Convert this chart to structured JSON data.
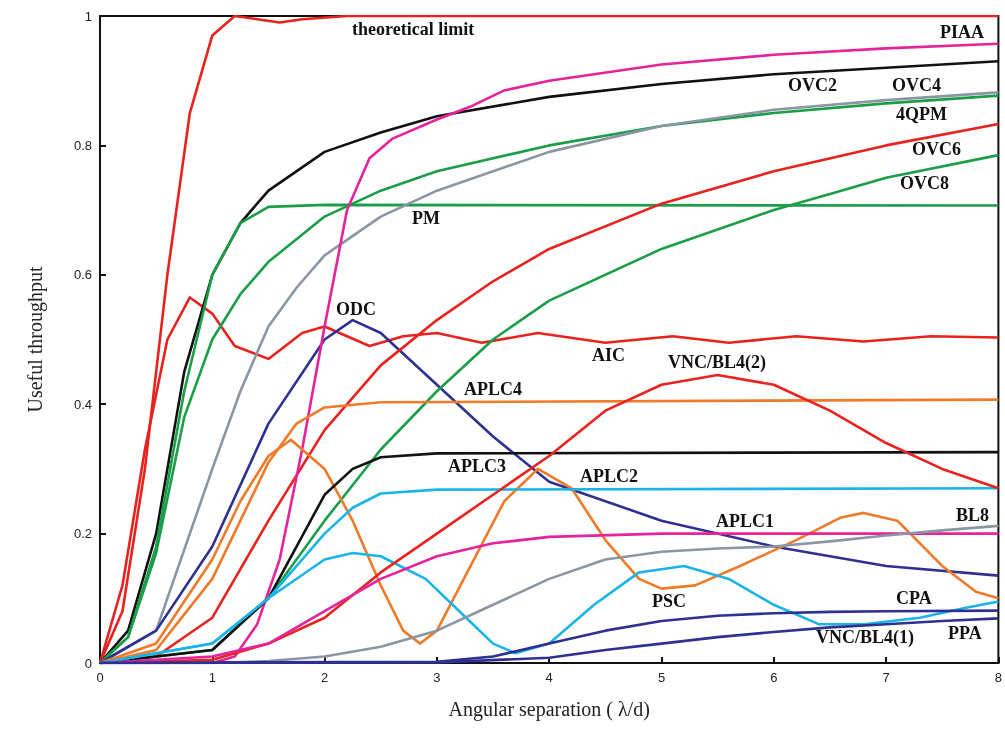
{
  "chart_data": {
    "type": "line",
    "xlabel": "Angular separation ( λ/d)",
    "ylabel": "Useful throughput",
    "xlim": [
      0,
      8
    ],
    "ylim": [
      0,
      1
    ],
    "xticks": [
      0,
      1,
      2,
      3,
      4,
      5,
      6,
      7,
      8
    ],
    "yticks": [
      0,
      0.2,
      0.4,
      0.6,
      0.8,
      1
    ],
    "marker": "none",
    "line_style": "solid",
    "series": [
      {
        "name": "theoretical limit",
        "color": "#e8221e",
        "x": [
          0,
          0.2,
          0.4,
          0.6,
          0.8,
          1.0,
          1.2,
          1.4,
          1.6,
          1.8,
          2.2,
          3,
          4,
          5,
          6,
          7,
          8
        ],
        "values": [
          0,
          0.08,
          0.3,
          0.6,
          0.85,
          0.97,
          1.0,
          0.995,
          0.99,
          0.995,
          1.0,
          1.0,
          1.0,
          1.0,
          1.0,
          1.0,
          1.0
        ]
      },
      {
        "name": "AIC",
        "color": "#e8221e",
        "x": [
          0,
          0.2,
          0.4,
          0.6,
          0.8,
          1.0,
          1.2,
          1.5,
          1.8,
          2.0,
          2.4,
          2.7,
          3.0,
          3.4,
          3.9,
          4.5,
          5.1,
          5.6,
          6.2,
          6.8,
          7.4,
          8
        ],
        "values": [
          0,
          0.12,
          0.33,
          0.5,
          0.565,
          0.54,
          0.49,
          0.47,
          0.51,
          0.52,
          0.49,
          0.505,
          0.51,
          0.495,
          0.51,
          0.495,
          0.505,
          0.495,
          0.505,
          0.497,
          0.505,
          0.503
        ]
      },
      {
        "name": "OVC2",
        "color": "#111111",
        "x": [
          0,
          0.25,
          0.5,
          0.75,
          1,
          1.25,
          1.5,
          2,
          2.5,
          3,
          4,
          5,
          6,
          7,
          8
        ],
        "values": [
          0,
          0.05,
          0.2,
          0.45,
          0.6,
          0.68,
          0.73,
          0.79,
          0.82,
          0.845,
          0.875,
          0.895,
          0.91,
          0.92,
          0.93
        ]
      },
      {
        "name": "PM",
        "color": "#1a9e48",
        "x": [
          0,
          0.25,
          0.5,
          0.75,
          1,
          1.25,
          1.5,
          2,
          8
        ],
        "values": [
          0,
          0.04,
          0.18,
          0.42,
          0.6,
          0.68,
          0.705,
          0.708,
          0.707
        ]
      },
      {
        "name": "4QPM",
        "color": "#1a9e48",
        "x": [
          0,
          0.25,
          0.5,
          0.75,
          1,
          1.25,
          1.5,
          2,
          2.5,
          3,
          4,
          5,
          6,
          7,
          8
        ],
        "values": [
          0,
          0.04,
          0.17,
          0.38,
          0.5,
          0.57,
          0.62,
          0.69,
          0.73,
          0.76,
          0.8,
          0.83,
          0.85,
          0.865,
          0.877
        ]
      },
      {
        "name": "OVC4",
        "color": "#8a96a3",
        "x": [
          0,
          0.5,
          1,
          1.25,
          1.5,
          1.75,
          2,
          2.5,
          3,
          4,
          5,
          6,
          7,
          8
        ],
        "values": [
          0,
          0.05,
          0.3,
          0.42,
          0.52,
          0.58,
          0.63,
          0.69,
          0.73,
          0.79,
          0.83,
          0.855,
          0.87,
          0.882
        ]
      },
      {
        "name": "ODC",
        "color": "#2e3192",
        "x": [
          0,
          0.5,
          1,
          1.5,
          2,
          2.25,
          2.5,
          3,
          3.5,
          4,
          5,
          6,
          7,
          8
        ],
        "values": [
          0,
          0.05,
          0.18,
          0.37,
          0.5,
          0.53,
          0.51,
          0.43,
          0.35,
          0.28,
          0.22,
          0.18,
          0.15,
          0.135
        ]
      },
      {
        "name": "OVC6",
        "color": "#e8221e",
        "x": [
          0,
          0.5,
          1,
          1.5,
          2,
          2.5,
          3,
          3.5,
          4,
          5,
          6,
          7,
          8
        ],
        "values": [
          0,
          0.01,
          0.07,
          0.22,
          0.36,
          0.46,
          0.53,
          0.59,
          0.64,
          0.71,
          0.76,
          0.8,
          0.833
        ]
      },
      {
        "name": "OVC8",
        "color": "#1a9e48",
        "x": [
          0,
          1,
          1.5,
          2,
          2.5,
          3,
          3.5,
          4,
          5,
          6,
          6.5,
          7,
          8
        ],
        "values": [
          0,
          0.02,
          0.1,
          0.22,
          0.33,
          0.42,
          0.5,
          0.56,
          0.64,
          0.7,
          0.725,
          0.75,
          0.785
        ]
      },
      {
        "name": "PIAA",
        "color": "#e6239a",
        "x": [
          0,
          1,
          1.2,
          1.4,
          1.6,
          1.8,
          2.0,
          2.2,
          2.4,
          2.6,
          3,
          3.3,
          3.6,
          4,
          5,
          6,
          7,
          8
        ],
        "values": [
          0,
          0,
          0.01,
          0.06,
          0.16,
          0.33,
          0.52,
          0.7,
          0.78,
          0.81,
          0.84,
          0.86,
          0.885,
          0.9,
          0.925,
          0.94,
          0.95,
          0.957
        ]
      },
      {
        "name": "APLC4",
        "color": "#f07a28",
        "x": [
          0,
          0.5,
          1,
          1.25,
          1.5,
          1.75,
          2,
          2.5,
          8
        ],
        "values": [
          0,
          0.02,
          0.13,
          0.22,
          0.31,
          0.37,
          0.395,
          0.403,
          0.407
        ]
      },
      {
        "name": "PSC",
        "color": "#f07a28",
        "x": [
          0,
          0.5,
          1,
          1.25,
          1.5,
          1.7,
          2,
          2.25,
          2.5,
          2.7,
          2.85,
          3.0,
          3.3,
          3.6,
          3.9,
          4.2,
          4.5,
          4.8,
          5.0,
          5.3,
          5.7,
          6.2,
          6.6,
          6.8,
          7.1,
          7.5,
          7.8,
          8
        ],
        "values": [
          0,
          0.03,
          0.16,
          0.25,
          0.32,
          0.345,
          0.3,
          0.22,
          0.12,
          0.05,
          0.03,
          0.05,
          0.15,
          0.25,
          0.3,
          0.27,
          0.19,
          0.13,
          0.115,
          0.12,
          0.15,
          0.19,
          0.225,
          0.232,
          0.22,
          0.15,
          0.11,
          0.1
        ]
      },
      {
        "name": "APLC3",
        "color": "#111111",
        "x": [
          0,
          1,
          1.5,
          1.75,
          2,
          2.25,
          2.5,
          3,
          8
        ],
        "values": [
          0,
          0.02,
          0.1,
          0.18,
          0.26,
          0.3,
          0.318,
          0.324,
          0.326
        ]
      },
      {
        "name": "APLC2",
        "color": "#1ab4e8",
        "x": [
          0,
          1,
          1.5,
          2,
          2.25,
          2.5,
          3,
          8
        ],
        "values": [
          0,
          0.03,
          0.1,
          0.2,
          0.24,
          0.262,
          0.268,
          0.27
        ]
      },
      {
        "name": "VNC/BL4(1)",
        "color": "#1ab4e8",
        "x": [
          0,
          1,
          1.5,
          2,
          2.25,
          2.5,
          2.9,
          3.2,
          3.5,
          3.7,
          4.0,
          4.4,
          4.8,
          5.2,
          5.6,
          6.0,
          6.4,
          6.8,
          7.3,
          7.7,
          8
        ],
        "values": [
          0,
          0.03,
          0.1,
          0.16,
          0.17,
          0.165,
          0.13,
          0.08,
          0.03,
          0.015,
          0.03,
          0.09,
          0.14,
          0.15,
          0.13,
          0.09,
          0.06,
          0.06,
          0.07,
          0.085,
          0.095
        ]
      },
      {
        "name": "VNC/BL4(2)",
        "color": "#e8221e",
        "x": [
          0,
          1,
          1.5,
          2,
          2.5,
          3,
          3.5,
          4,
          4.5,
          5,
          5.5,
          6,
          6.5,
          7,
          7.5,
          8
        ],
        "values": [
          0,
          0.005,
          0.03,
          0.07,
          0.14,
          0.2,
          0.26,
          0.32,
          0.39,
          0.43,
          0.445,
          0.43,
          0.39,
          0.34,
          0.3,
          0.27
        ]
      },
      {
        "name": "APLC1",
        "color": "#e6239a",
        "x": [
          0,
          1,
          1.5,
          2,
          2.5,
          3,
          3.5,
          4,
          5,
          8
        ],
        "values": [
          0,
          0.01,
          0.03,
          0.08,
          0.13,
          0.165,
          0.185,
          0.195,
          0.2,
          0.2
        ]
      },
      {
        "name": "BL8",
        "color": "#8a96a3",
        "x": [
          0,
          1,
          1.5,
          2,
          2.5,
          3,
          3.5,
          4,
          4.5,
          5,
          5.5,
          6,
          6.5,
          7,
          7.5,
          8
        ],
        "values": [
          0,
          0,
          0.003,
          0.01,
          0.025,
          0.05,
          0.09,
          0.13,
          0.16,
          0.172,
          0.177,
          0.18,
          0.188,
          0.197,
          0.205,
          0.212
        ]
      },
      {
        "name": "CPA",
        "color": "#2e3192",
        "x": [
          0,
          3,
          3.5,
          4,
          4.5,
          5,
          5.5,
          6,
          6.5,
          7,
          8
        ],
        "values": [
          0,
          0.002,
          0.01,
          0.03,
          0.05,
          0.065,
          0.073,
          0.077,
          0.079,
          0.08,
          0.081
        ]
      },
      {
        "name": "PPA",
        "color": "#2e3192",
        "x": [
          0,
          3,
          4,
          4.5,
          5,
          5.5,
          6,
          6.5,
          7,
          7.5,
          8
        ],
        "values": [
          0,
          0.001,
          0.008,
          0.02,
          0.03,
          0.04,
          0.048,
          0.055,
          0.06,
          0.065,
          0.069
        ]
      }
    ]
  }
}
